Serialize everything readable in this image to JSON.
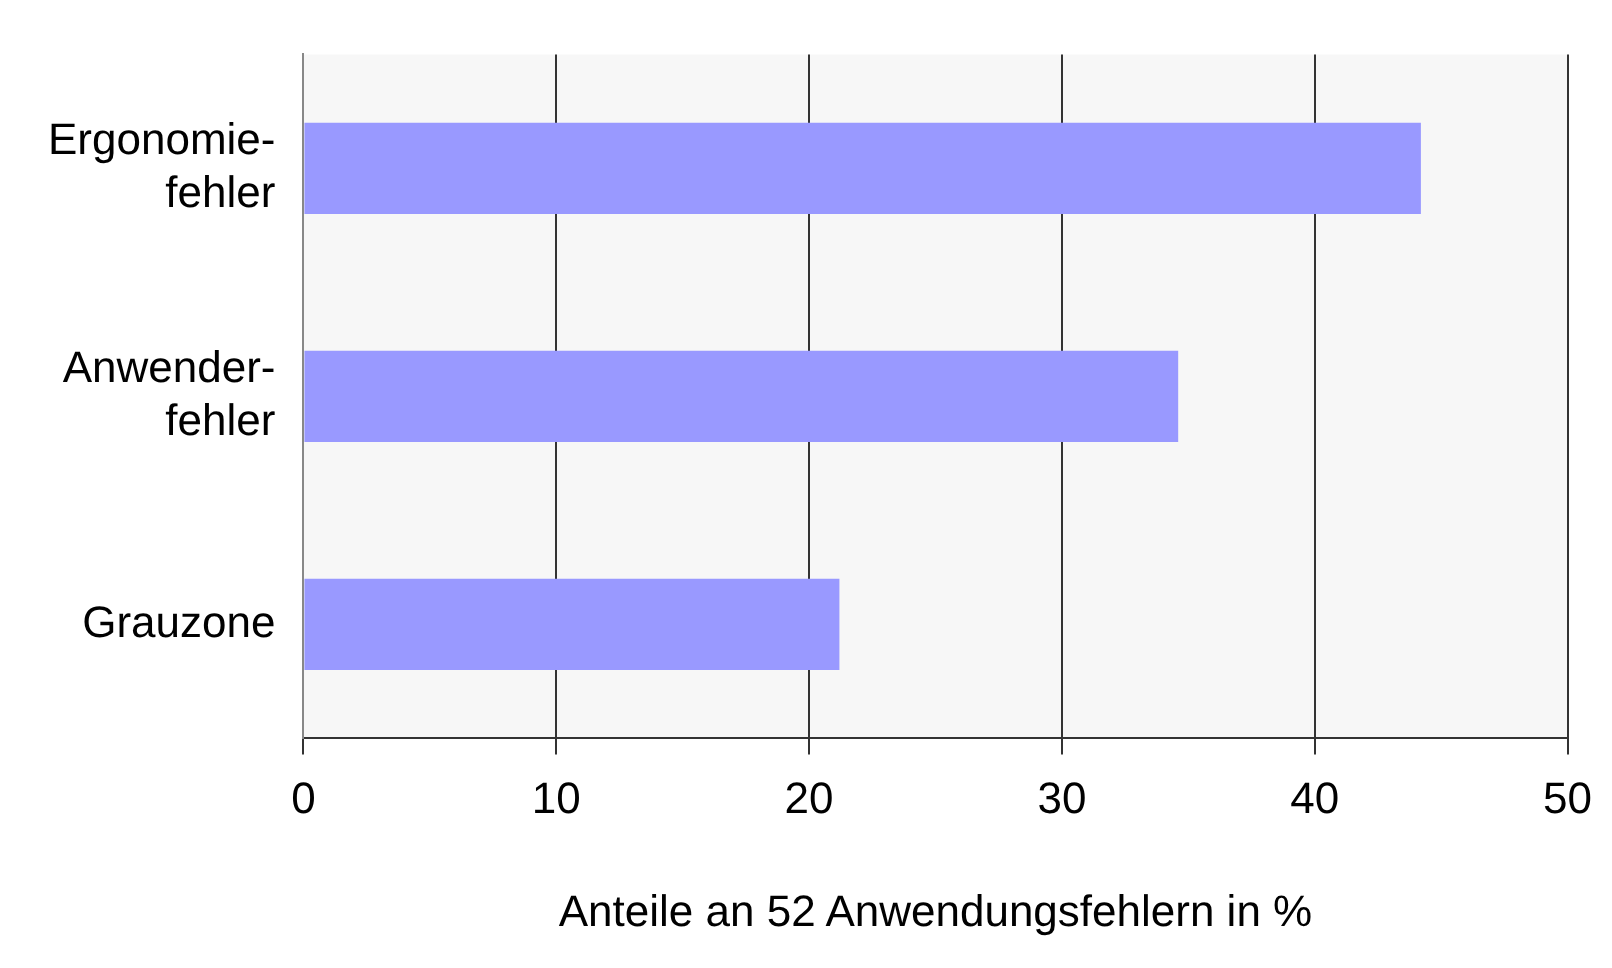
{
  "chart_data": {
    "type": "bar",
    "orientation": "horizontal",
    "xlabel": "Anteile an 52 Anwendungsfehlern in %",
    "categories": [
      "Ergonomie-\nfehler",
      "Anwender-\nfehler",
      "Grauzone"
    ],
    "values": [
      44.2,
      34.6,
      21.2
    ],
    "color": "#9999ff",
    "xlim": [
      0,
      50
    ],
    "xticks": [
      0,
      10,
      20,
      30,
      40,
      50
    ],
    "grid": "x",
    "legend": false
  }
}
